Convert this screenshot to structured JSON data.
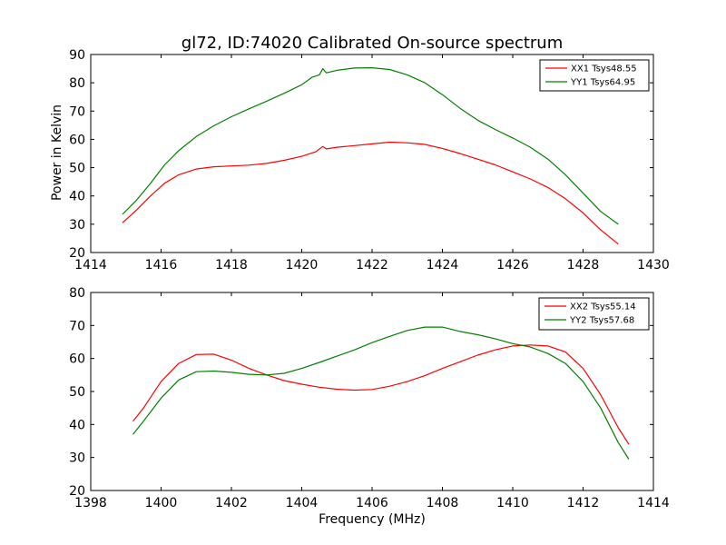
{
  "figure": {
    "title": "gl72, ID:74020 Calibrated On-source spectrum",
    "xlabel": "Frequency (MHz)",
    "ylabel": "Power in Kelvin"
  },
  "colors": {
    "xx": "#ff0000",
    "yy": "#008000",
    "frame": "#000000",
    "background": "#ffffff"
  },
  "chart_data": [
    {
      "type": "line",
      "xlim": [
        1414,
        1430
      ],
      "ylim": [
        20,
        90
      ],
      "xticks": [
        1414,
        1416,
        1418,
        1420,
        1422,
        1424,
        1426,
        1428,
        1430
      ],
      "yticks": [
        20,
        30,
        40,
        50,
        60,
        70,
        80,
        90
      ],
      "grid": false,
      "legend_position": "top-right",
      "series": [
        {
          "name": "XX1 Tsys48.55",
          "color": "#ff0000",
          "points": [
            [
              1414.9,
              30.5
            ],
            [
              1415.3,
              35
            ],
            [
              1415.7,
              40
            ],
            [
              1416.1,
              44.5
            ],
            [
              1416.5,
              47.5
            ],
            [
              1417.0,
              49.5
            ],
            [
              1417.5,
              50.3
            ],
            [
              1418.0,
              50.6
            ],
            [
              1418.5,
              50.9
            ],
            [
              1419.0,
              51.5
            ],
            [
              1419.5,
              52.6
            ],
            [
              1420.0,
              54
            ],
            [
              1420.4,
              55.6
            ],
            [
              1420.6,
              57.5
            ],
            [
              1420.7,
              56.6
            ],
            [
              1421.0,
              57.2
            ],
            [
              1421.5,
              57.8
            ],
            [
              1422.0,
              58.4
            ],
            [
              1422.5,
              59
            ],
            [
              1423.0,
              58.8
            ],
            [
              1423.5,
              58.2
            ],
            [
              1424.0,
              56.8
            ],
            [
              1424.5,
              55
            ],
            [
              1425.0,
              53
            ],
            [
              1425.5,
              51
            ],
            [
              1426.0,
              48.5
            ],
            [
              1426.5,
              46
            ],
            [
              1427.0,
              43
            ],
            [
              1427.5,
              39
            ],
            [
              1428.0,
              34
            ],
            [
              1428.5,
              28
            ],
            [
              1429.0,
              23
            ]
          ]
        },
        {
          "name": "YY1 Tsys64.95",
          "color": "#008000",
          "points": [
            [
              1414.9,
              33.5
            ],
            [
              1415.3,
              38.5
            ],
            [
              1415.7,
              44.5
            ],
            [
              1416.1,
              51
            ],
            [
              1416.5,
              56
            ],
            [
              1417.0,
              61
            ],
            [
              1417.5,
              64.8
            ],
            [
              1418.0,
              68
            ],
            [
              1418.5,
              70.8
            ],
            [
              1419.0,
              73.5
            ],
            [
              1419.5,
              76.3
            ],
            [
              1420.0,
              79.3
            ],
            [
              1420.3,
              82
            ],
            [
              1420.5,
              82.8
            ],
            [
              1420.6,
              85
            ],
            [
              1420.7,
              83.5
            ],
            [
              1421.0,
              84.4
            ],
            [
              1421.5,
              85.2
            ],
            [
              1422.0,
              85.3
            ],
            [
              1422.5,
              84.7
            ],
            [
              1423.0,
              82.8
            ],
            [
              1423.5,
              80
            ],
            [
              1424.0,
              75.8
            ],
            [
              1424.5,
              71
            ],
            [
              1425.0,
              66.8
            ],
            [
              1425.5,
              63.5
            ],
            [
              1426.0,
              60.5
            ],
            [
              1426.5,
              57.2
            ],
            [
              1427.0,
              53
            ],
            [
              1427.5,
              47.5
            ],
            [
              1428.0,
              41
            ],
            [
              1428.5,
              34.5
            ],
            [
              1429.0,
              30
            ]
          ]
        }
      ]
    },
    {
      "type": "line",
      "xlim": [
        1398,
        1414
      ],
      "ylim": [
        20,
        80
      ],
      "xticks": [
        1398,
        1400,
        1402,
        1404,
        1406,
        1408,
        1410,
        1412,
        1414
      ],
      "yticks": [
        20,
        30,
        40,
        50,
        60,
        70,
        80
      ],
      "grid": false,
      "legend_position": "top-right",
      "series": [
        {
          "name": "XX2 Tsys55.14",
          "color": "#ff0000",
          "points": [
            [
              1399.2,
              41
            ],
            [
              1399.5,
              45
            ],
            [
              1400.0,
              53
            ],
            [
              1400.5,
              58.5
            ],
            [
              1401.0,
              61.2
            ],
            [
              1401.5,
              61.3
            ],
            [
              1402.0,
              59.5
            ],
            [
              1402.5,
              57
            ],
            [
              1403.0,
              55
            ],
            [
              1403.5,
              53.3
            ],
            [
              1404.0,
              52.2
            ],
            [
              1404.5,
              51.3
            ],
            [
              1405.0,
              50.7
            ],
            [
              1405.5,
              50.4
            ],
            [
              1406.0,
              50.6
            ],
            [
              1406.5,
              51.6
            ],
            [
              1407.0,
              53
            ],
            [
              1407.5,
              54.8
            ],
            [
              1408.0,
              57
            ],
            [
              1408.5,
              59
            ],
            [
              1409.0,
              61
            ],
            [
              1409.5,
              62.6
            ],
            [
              1410.0,
              63.8
            ],
            [
              1410.5,
              64.1
            ],
            [
              1411.0,
              63.8
            ],
            [
              1411.5,
              62
            ],
            [
              1412.0,
              57
            ],
            [
              1412.5,
              49
            ],
            [
              1413.0,
              39
            ],
            [
              1413.3,
              34
            ]
          ]
        },
        {
          "name": "YY2 Tsys57.68",
          "color": "#008000",
          "points": [
            [
              1399.2,
              37
            ],
            [
              1399.5,
              41
            ],
            [
              1400.0,
              48
            ],
            [
              1400.5,
              53.5
            ],
            [
              1401.0,
              56
            ],
            [
              1401.5,
              56.2
            ],
            [
              1402.0,
              55.8
            ],
            [
              1402.5,
              55.2
            ],
            [
              1403.0,
              55
            ],
            [
              1403.5,
              55.5
            ],
            [
              1404.0,
              57
            ],
            [
              1404.5,
              58.8
            ],
            [
              1405.0,
              60.7
            ],
            [
              1405.5,
              62.6
            ],
            [
              1406.0,
              64.8
            ],
            [
              1406.5,
              66.7
            ],
            [
              1407.0,
              68.5
            ],
            [
              1407.5,
              69.5
            ],
            [
              1408.0,
              69.5
            ],
            [
              1408.5,
              68.2
            ],
            [
              1409.0,
              67.2
            ],
            [
              1409.5,
              66
            ],
            [
              1410.0,
              64.5
            ],
            [
              1410.5,
              63.5
            ],
            [
              1411.0,
              61.5
            ],
            [
              1411.5,
              58.5
            ],
            [
              1412.0,
              53
            ],
            [
              1412.5,
              45
            ],
            [
              1413.0,
              34.5
            ],
            [
              1413.3,
              29.5
            ]
          ]
        }
      ]
    }
  ]
}
